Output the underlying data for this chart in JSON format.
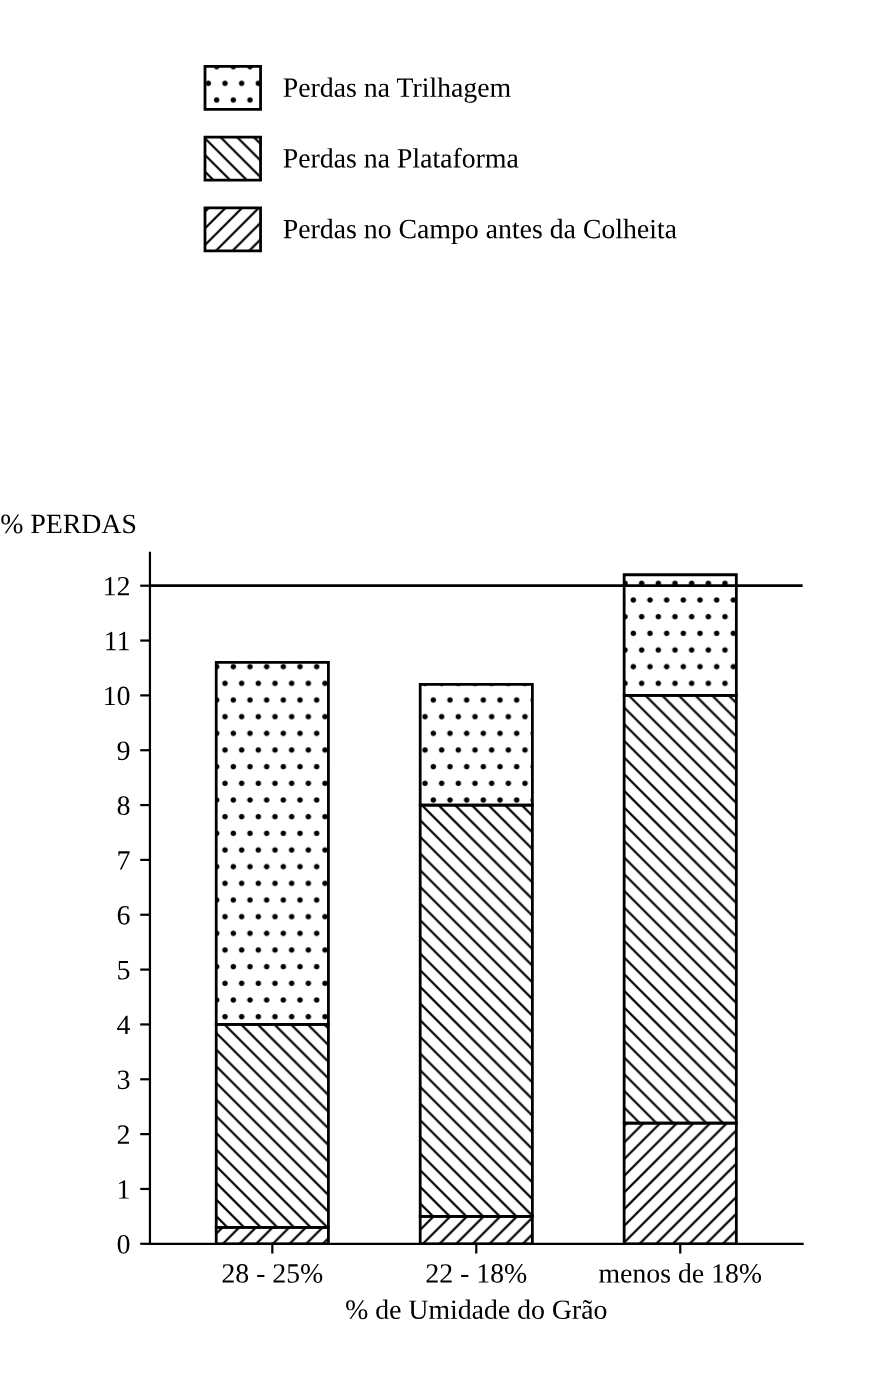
{
  "chart_data": {
    "type": "bar",
    "stacked": true,
    "categories": [
      "28 - 25%",
      "22 - 18%",
      "menos de 18%"
    ],
    "series": [
      {
        "name": "Perdas no Campo antes da Colheita",
        "color": "#000000",
        "values": [
          0.3,
          0.5,
          2.2
        ]
      },
      {
        "name": "Perdas na Plataforma",
        "color": "#000000",
        "values": [
          3.7,
          7.5,
          7.8
        ]
      },
      {
        "name": "Perdas na Trilhagem",
        "color": "#000000",
        "values": [
          6.6,
          2.2,
          2.2
        ]
      }
    ],
    "ylabel": "% PERDAS",
    "xlabel": "% de Umidade do Grão",
    "ylim": [
      0,
      12.6
    ],
    "yticks": [
      0,
      1,
      2,
      3,
      4,
      5,
      6,
      7,
      8,
      9,
      10,
      11,
      12
    ],
    "ref_lines": [
      {
        "axis": "y",
        "value": 12,
        "color": "#000000"
      }
    ],
    "grid": false,
    "legend": "top"
  }
}
